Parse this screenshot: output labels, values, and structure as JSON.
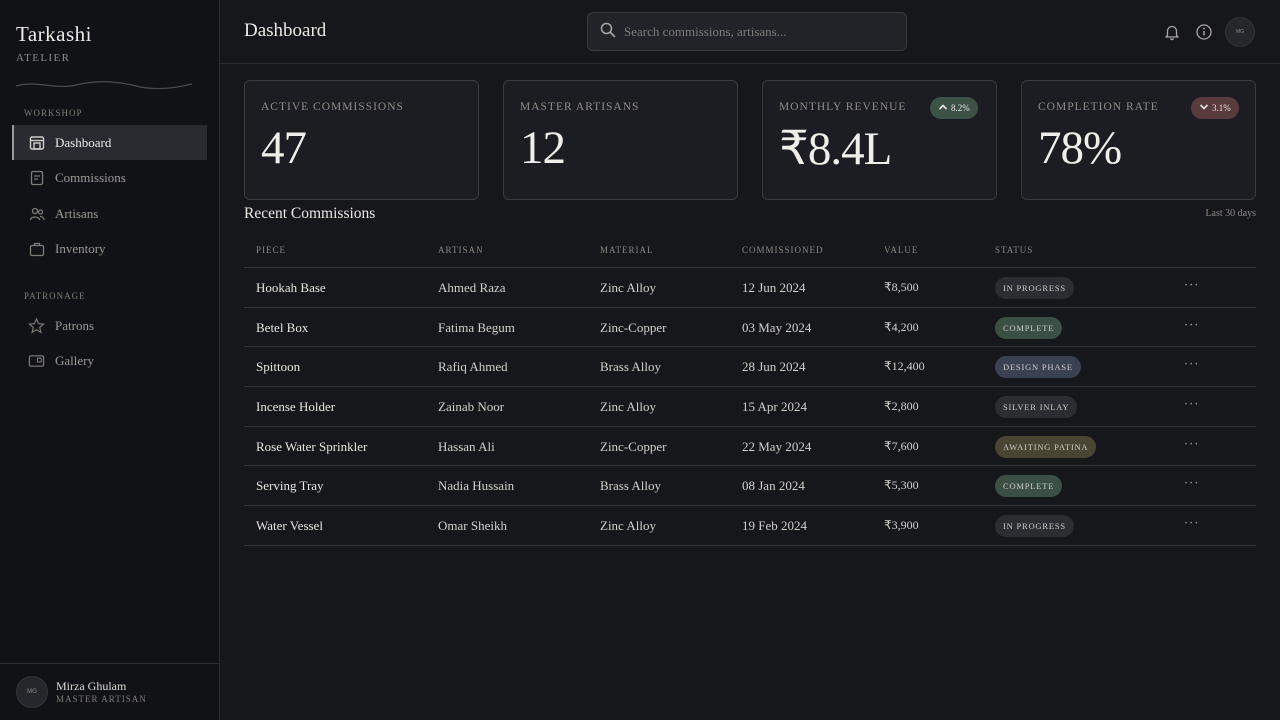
{
  "sidebar": {
    "brand": "Tarkashi",
    "brand_sub": "ATELIER",
    "sections": [
      {
        "label": "WORKSHOP",
        "items": [
          {
            "label": "Dashboard",
            "icon": "dashboard-icon",
            "active": true
          },
          {
            "label": "Commissions",
            "icon": "document-icon"
          },
          {
            "label": "Artisans",
            "icon": "people-icon"
          },
          {
            "label": "Inventory",
            "icon": "box-icon"
          }
        ]
      },
      {
        "label": "PATRONAGE",
        "items": [
          {
            "label": "Patrons",
            "icon": "star-icon"
          },
          {
            "label": "Gallery",
            "icon": "gallery-icon"
          }
        ]
      }
    ],
    "user": {
      "initials": "MG",
      "name": "Mirza Ghulam",
      "role": "MASTER ARTISAN"
    }
  },
  "header": {
    "title": "Dashboard",
    "search_placeholder": "Search commissions, artisans...",
    "avatar_initials": "MG"
  },
  "stats": [
    {
      "label": "ACTIVE COMMISSIONS",
      "value": "47"
    },
    {
      "label": "MASTER ARTISANS",
      "value": "12"
    },
    {
      "label": "MONTHLY REVENUE",
      "value": "₹8.4L",
      "trend": "8.2%",
      "trend_dir": "up"
    },
    {
      "label": "COMPLETION RATE",
      "value": "78%",
      "trend": "3.1%",
      "trend_dir": "down"
    }
  ],
  "recent": {
    "title": "Recent Commissions",
    "range": "Last 30 days",
    "columns": [
      "PIECE",
      "ARTISAN",
      "MATERIAL",
      "COMMISSIONED",
      "VALUE",
      "STATUS"
    ],
    "rows": [
      {
        "piece": "Hookah Base",
        "artisan": "Ahmed Raza",
        "material": "Zinc Alloy",
        "date": "12 Jun 2024",
        "value": "₹8,500",
        "status": "IN PROGRESS",
        "status_color": "#2c2d32"
      },
      {
        "piece": "Betel Box",
        "artisan": "Fatima Begum",
        "material": "Zinc-Copper",
        "date": "03 May 2024",
        "value": "₹4,200",
        "status": "COMPLETE",
        "status_color": "#3b5045"
      },
      {
        "piece": "Spittoon",
        "artisan": "Rafiq Ahmed",
        "material": "Brass Alloy",
        "date": "28 Jun 2024",
        "value": "₹12,400",
        "status": "DESIGN PHASE",
        "status_color": "#3a4153"
      },
      {
        "piece": "Incense Holder",
        "artisan": "Zainab Noor",
        "material": "Zinc Alloy",
        "date": "15 Apr 2024",
        "value": "₹2,800",
        "status": "SILVER INLAY",
        "status_color": "#2c2d32"
      },
      {
        "piece": "Rose Water Sprinkler",
        "artisan": "Hassan Ali",
        "material": "Zinc-Copper",
        "date": "22 May 2024",
        "value": "₹7,600",
        "status": "AWAITING PATINA",
        "status_color": "#4a4532"
      },
      {
        "piece": "Serving Tray",
        "artisan": "Nadia Hussain",
        "material": "Brass Alloy",
        "date": "08 Jan 2024",
        "value": "₹5,300",
        "status": "COMPLETE",
        "status_color": "#3b5045"
      },
      {
        "piece": "Water Vessel",
        "artisan": "Omar Sheikh",
        "material": "Zinc Alloy",
        "date": "19 Feb 2024",
        "value": "₹3,900",
        "status": "IN PROGRESS",
        "status_color": "#2c2d32"
      }
    ],
    "more_label": "···"
  }
}
